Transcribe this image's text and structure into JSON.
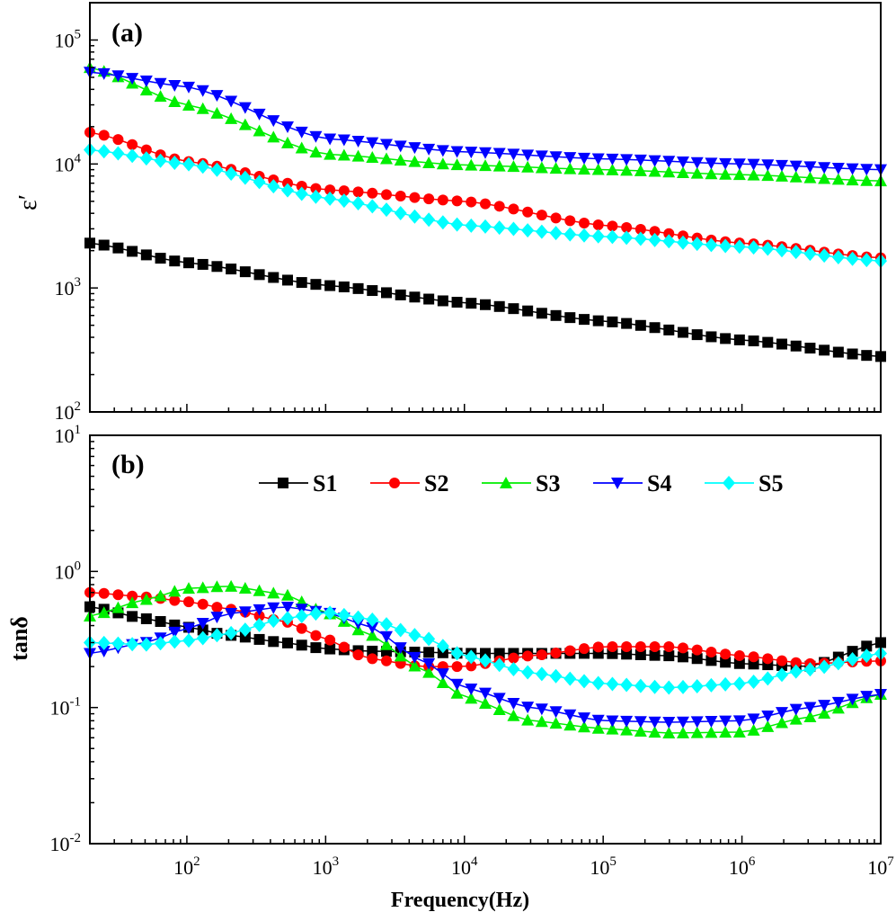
{
  "figure": {
    "panel_a_label": "(a)",
    "panel_b_label": "(b)",
    "x_axis_label": "Frequency(Hz)",
    "panel_a_y_label": "ε′",
    "panel_b_y_label": "tanδ"
  },
  "chart_data": [
    {
      "panel": "(a)",
      "type": "line",
      "xlabel": "Frequency(Hz)",
      "ylabel": "ε′",
      "xscale": "log",
      "yscale": "log",
      "xlim": [
        20,
        10000000
      ],
      "ylim": [
        100,
        200000
      ],
      "x_ticks": [
        100,
        1000,
        10000,
        100000,
        1000000,
        10000000
      ],
      "y_ticks": [
        100,
        1000,
        10000,
        100000
      ],
      "y_tick_labels": [
        {
          "base": "10",
          "exp": "2"
        },
        {
          "base": "10",
          "exp": "3"
        },
        {
          "base": "10",
          "exp": "4"
        },
        {
          "base": "10",
          "exp": "5"
        }
      ],
      "grid": false,
      "x": [
        20,
        100,
        1000,
        10000,
        100000,
        1000000,
        10000000
      ],
      "series": [
        {
          "name": "S1",
          "color": "#000000",
          "marker": "square",
          "values": [
            2300,
            1600,
            1050,
            760,
            540,
            380,
            280
          ]
        },
        {
          "name": "S2",
          "color": "#ff0000",
          "marker": "circle",
          "values": [
            18000,
            10500,
            6200,
            5000,
            3200,
            2300,
            1750
          ]
        },
        {
          "name": "S3",
          "color": "#00ee00",
          "marker": "triangle-up",
          "values": [
            60000,
            30000,
            12000,
            9800,
            9000,
            8200,
            7300
          ]
        },
        {
          "name": "S4",
          "color": "#0000ff",
          "marker": "triangle-down",
          "values": [
            55000,
            42000,
            16000,
            12500,
            11000,
            10000,
            9000
          ]
        },
        {
          "name": "S5",
          "color": "#00ffff",
          "marker": "diamond",
          "values": [
            13000,
            10000,
            5300,
            3200,
            2600,
            2150,
            1650
          ]
        }
      ]
    },
    {
      "panel": "(b)",
      "type": "line",
      "xlabel": "Frequency(Hz)",
      "ylabel": "tanδ",
      "xscale": "log",
      "yscale": "log",
      "xlim": [
        20,
        10000000
      ],
      "ylim": [
        0.01,
        10
      ],
      "x_ticks": [
        100,
        1000,
        10000,
        100000,
        1000000,
        10000000
      ],
      "x_tick_labels": [
        {
          "base": "10",
          "exp": "2"
        },
        {
          "base": "10",
          "exp": "3"
        },
        {
          "base": "10",
          "exp": "4"
        },
        {
          "base": "10",
          "exp": "5"
        },
        {
          "base": "10",
          "exp": "6"
        },
        {
          "base": "10",
          "exp": "7"
        }
      ],
      "y_ticks": [
        0.01,
        0.1,
        1,
        10
      ],
      "y_tick_labels": [
        {
          "base": "10",
          "exp": "-2"
        },
        {
          "base": "10",
          "exp": "-1"
        },
        {
          "base": "10",
          "exp": "0"
        },
        {
          "base": "10",
          "exp": "1"
        }
      ],
      "grid": false,
      "legend_position": "top",
      "x": [
        20,
        50,
        100,
        200,
        500,
        1000,
        2000,
        5000,
        10000,
        30000,
        100000,
        300000,
        1000000,
        3000000,
        10000000
      ],
      "series": [
        {
          "name": "S1",
          "color": "#000000",
          "marker": "square",
          "values": [
            0.55,
            0.45,
            0.39,
            0.34,
            0.3,
            0.27,
            0.26,
            0.255,
            0.25,
            0.25,
            0.25,
            0.24,
            0.21,
            0.2,
            0.3
          ]
        },
        {
          "name": "S2",
          "color": "#ff0000",
          "marker": "circle",
          "values": [
            0.7,
            0.65,
            0.6,
            0.53,
            0.43,
            0.32,
            0.23,
            0.2,
            0.2,
            0.24,
            0.28,
            0.28,
            0.24,
            0.21,
            0.22
          ]
        },
        {
          "name": "S3",
          "color": "#00ee00",
          "marker": "triangle-up",
          "values": [
            0.47,
            0.62,
            0.75,
            0.78,
            0.68,
            0.5,
            0.35,
            0.19,
            0.12,
            0.08,
            0.07,
            0.065,
            0.066,
            0.085,
            0.125
          ]
        },
        {
          "name": "S4",
          "color": "#0000ff",
          "marker": "triangle-down",
          "values": [
            0.25,
            0.3,
            0.38,
            0.49,
            0.55,
            0.5,
            0.4,
            0.22,
            0.14,
            0.1,
            0.08,
            0.078,
            0.08,
            0.1,
            0.125
          ]
        },
        {
          "name": "S5",
          "color": "#00ffff",
          "marker": "diamond",
          "values": [
            0.3,
            0.29,
            0.31,
            0.35,
            0.45,
            0.5,
            0.45,
            0.33,
            0.24,
            0.18,
            0.15,
            0.14,
            0.15,
            0.19,
            0.25
          ]
        }
      ]
    }
  ]
}
